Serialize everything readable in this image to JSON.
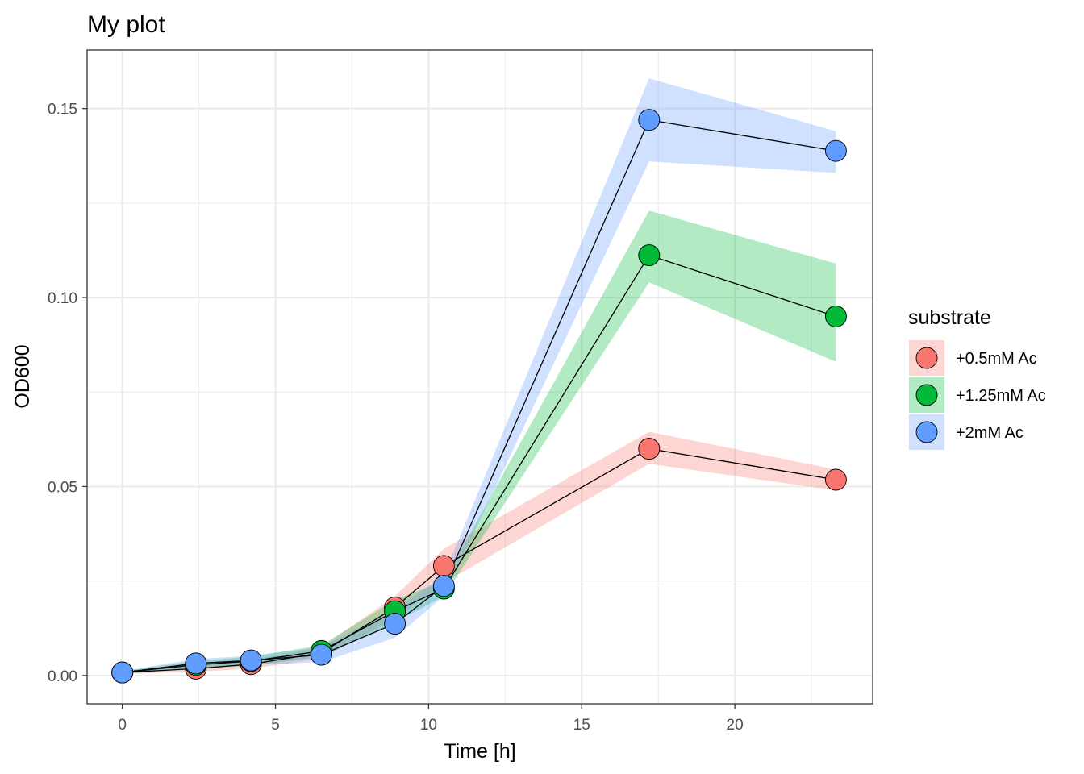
{
  "chart_data": {
    "type": "line",
    "title": "My plot",
    "xlabel": "Time [h]",
    "ylabel": "OD600",
    "xlim": [
      -1.15,
      24.5
    ],
    "ylim": [
      -0.0075,
      0.1655
    ],
    "x_ticks": [
      0,
      5,
      10,
      15,
      20
    ],
    "x_tick_labels": [
      "0",
      "5",
      "10",
      "15",
      "20"
    ],
    "y_ticks": [
      0.0,
      0.05,
      0.1,
      0.15
    ],
    "y_tick_labels": [
      "0.00",
      "0.05",
      "0.10",
      "0.15"
    ],
    "grid": true,
    "legend_title": "substrate",
    "legend_position": "right",
    "x": [
      0,
      2.4,
      4.2,
      6.5,
      8.9,
      10.5,
      17.2,
      23.3
    ],
    "series": [
      {
        "name": "+0.5mM Ac",
        "color": "#F8766D",
        "values": [
          0.0008,
          0.0018,
          0.003,
          0.006,
          0.018,
          0.029,
          0.06,
          0.0518
        ],
        "lower": [
          0.0004,
          0.001,
          0.0018,
          0.0045,
          0.015,
          0.0245,
          0.056,
          0.049
        ],
        "upper": [
          0.0012,
          0.0026,
          0.0042,
          0.0075,
          0.021,
          0.0335,
          0.0645,
          0.0545
        ]
      },
      {
        "name": "+1.25mM Ac",
        "color": "#00BA38",
        "values": [
          0.0008,
          0.0028,
          0.0038,
          0.0065,
          0.017,
          0.023,
          0.1112,
          0.095
        ],
        "lower": [
          0.0004,
          0.0018,
          0.0026,
          0.005,
          0.014,
          0.021,
          0.104,
          0.083
        ],
        "upper": [
          0.0012,
          0.0038,
          0.005,
          0.008,
          0.02,
          0.025,
          0.123,
          0.109
        ]
      },
      {
        "name": "+2mM Ac",
        "color": "#619CFF",
        "values": [
          0.0008,
          0.0032,
          0.004,
          0.0055,
          0.0137,
          0.0237,
          0.147,
          0.1388
        ],
        "lower": [
          0.0004,
          0.002,
          0.0028,
          0.0035,
          0.01,
          0.021,
          0.136,
          0.133
        ],
        "upper": [
          0.0012,
          0.0044,
          0.0052,
          0.0075,
          0.0175,
          0.0265,
          0.158,
          0.144
        ]
      }
    ]
  }
}
